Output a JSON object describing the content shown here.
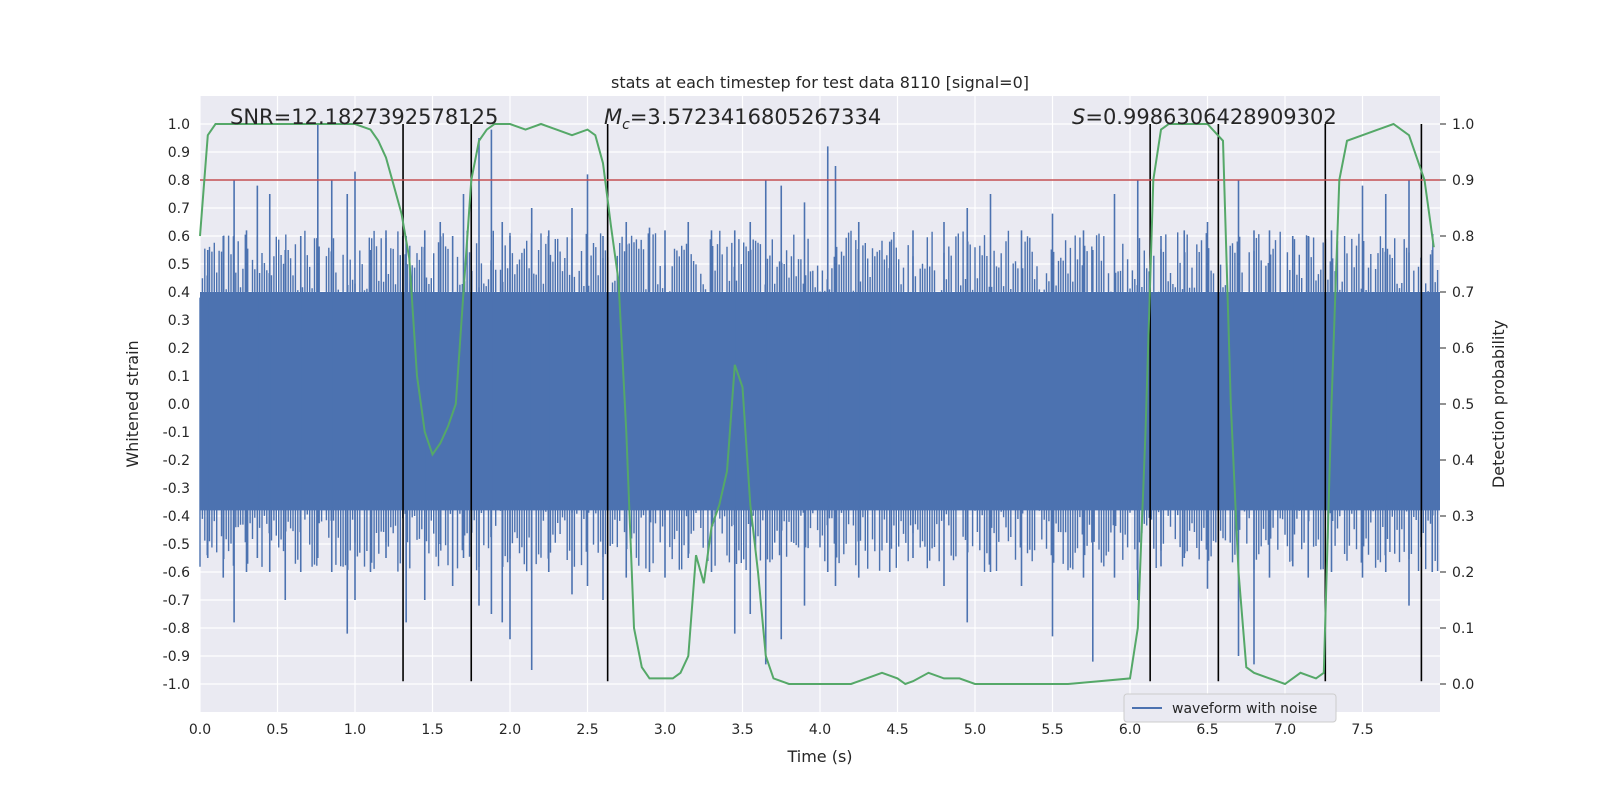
{
  "chart_data": {
    "type": "line",
    "title": "stats at each timestep for test data 8110 [signal=0]",
    "xlabel": "Time (s)",
    "ylabel": "Whitened strain",
    "ylabel_right": "Detection probability",
    "xlim": [
      0,
      8.0
    ],
    "ylim": [
      -1.1,
      1.1
    ],
    "ylim_right": [
      -0.05,
      1.05
    ],
    "x_ticks": [
      "0.0",
      "0.5",
      "1.0",
      "1.5",
      "2.0",
      "2.5",
      "3.0",
      "3.5",
      "4.0",
      "4.5",
      "5.0",
      "5.5",
      "6.0",
      "6.5",
      "7.0",
      "7.5"
    ],
    "y_ticks": [
      "-1.0",
      "-0.9",
      "-0.8",
      "-0.7",
      "-0.6",
      "-0.5",
      "-0.4",
      "-0.3",
      "-0.2",
      "-0.1",
      "0.0",
      "0.1",
      "0.2",
      "0.3",
      "0.4",
      "0.5",
      "0.6",
      "0.7",
      "0.8",
      "0.9",
      "1.0"
    ],
    "y_right_ticks": [
      "0.0",
      "0.1",
      "0.2",
      "0.3",
      "0.4",
      "0.5",
      "0.6",
      "0.7",
      "0.8",
      "0.9",
      "1.0"
    ],
    "grid": true,
    "legend": {
      "placement": "lower-right",
      "entries": [
        "waveform with noise"
      ]
    },
    "annotations": {
      "snr": "SNR=12.1827392578125",
      "mc_symbol": "M",
      "mc_sub": "c",
      "mc_value": "=3.5723416805267334",
      "s_symbol": "S",
      "s_value": "=0.9986306428909302"
    },
    "threshold": {
      "axis": "right",
      "value": 0.9,
      "color": "#c44e52"
    },
    "event_lines": [
      1.31,
      1.75,
      2.63,
      6.13,
      6.57,
      7.26,
      7.88
    ],
    "series": [
      {
        "name": "waveform with noise",
        "axis": "left",
        "color": "#4c72b0",
        "spikes": [
          [
            0.05,
            0.55,
            -0.55
          ],
          [
            0.15,
            0.6,
            -0.62
          ],
          [
            0.22,
            0.8,
            -0.78
          ],
          [
            0.3,
            0.62,
            -0.6
          ],
          [
            0.37,
            0.78,
            -0.55
          ],
          [
            0.45,
            0.75,
            -0.6
          ],
          [
            0.55,
            0.55,
            -0.7
          ],
          [
            0.65,
            0.6,
            -0.6
          ],
          [
            0.76,
            1.0,
            -0.55
          ],
          [
            0.85,
            0.8,
            -0.6
          ],
          [
            0.95,
            0.75,
            -0.82
          ],
          [
            1.0,
            0.83,
            -0.7
          ],
          [
            1.1,
            0.55,
            -0.6
          ],
          [
            1.2,
            0.62,
            -0.55
          ],
          [
            1.33,
            0.6,
            -0.78
          ],
          [
            1.45,
            0.62,
            -0.7
          ],
          [
            1.55,
            0.65,
            -0.5
          ],
          [
            1.63,
            0.6,
            -0.65
          ],
          [
            1.7,
            0.75,
            -0.55
          ],
          [
            1.8,
            0.95,
            -0.72
          ],
          [
            1.88,
            0.98,
            -0.75
          ],
          [
            1.95,
            0.65,
            -0.78
          ],
          [
            2.0,
            0.6,
            -0.84
          ],
          [
            2.14,
            0.7,
            -0.95
          ],
          [
            2.25,
            0.62,
            -0.6
          ],
          [
            2.4,
            0.7,
            -0.68
          ],
          [
            2.5,
            0.82,
            -0.65
          ],
          [
            2.6,
            0.6,
            -0.7
          ],
          [
            2.75,
            0.65,
            -0.62
          ],
          [
            2.9,
            0.63,
            -0.6
          ],
          [
            3.0,
            0.62,
            -0.62
          ],
          [
            3.15,
            0.65,
            -0.55
          ],
          [
            3.3,
            0.62,
            -0.6
          ],
          [
            3.45,
            0.62,
            -0.82
          ],
          [
            3.55,
            0.65,
            -0.75
          ],
          [
            3.65,
            0.8,
            -0.93
          ],
          [
            3.75,
            0.78,
            -0.84
          ],
          [
            3.9,
            0.72,
            -0.72
          ],
          [
            4.05,
            0.92,
            -0.6
          ],
          [
            4.1,
            0.85,
            -0.65
          ],
          [
            4.25,
            0.65,
            -0.62
          ],
          [
            4.45,
            0.58,
            -0.6
          ],
          [
            4.6,
            0.62,
            -0.55
          ],
          [
            4.8,
            0.65,
            -0.65
          ],
          [
            4.95,
            0.7,
            -0.78
          ],
          [
            5.1,
            0.75,
            -0.6
          ],
          [
            5.3,
            0.62,
            -0.65
          ],
          [
            5.5,
            0.68,
            -0.83
          ],
          [
            5.7,
            0.62,
            -0.62
          ],
          [
            5.76,
            0.55,
            -0.92
          ],
          [
            5.9,
            0.75,
            -0.62
          ],
          [
            6.05,
            0.8,
            -0.7
          ],
          [
            6.2,
            0.6,
            -0.58
          ],
          [
            6.35,
            0.62,
            -0.55
          ],
          [
            6.5,
            0.65,
            -0.66
          ],
          [
            6.7,
            0.8,
            -0.9
          ],
          [
            6.8,
            0.62,
            -0.93
          ],
          [
            6.9,
            0.62,
            -0.62
          ],
          [
            7.05,
            0.6,
            -0.58
          ],
          [
            7.15,
            0.6,
            -0.62
          ],
          [
            7.3,
            0.62,
            -0.6
          ],
          [
            7.5,
            0.78,
            -0.62
          ],
          [
            7.65,
            0.75,
            -0.6
          ],
          [
            7.8,
            0.8,
            -0.72
          ],
          [
            7.95,
            0.55,
            -0.6
          ]
        ]
      },
      {
        "name": "",
        "axis": "right",
        "color": "#55a868",
        "x": [
          0.0,
          0.05,
          0.1,
          0.2,
          0.5,
          1.0,
          1.1,
          1.15,
          1.2,
          1.25,
          1.3,
          1.35,
          1.4,
          1.45,
          1.5,
          1.55,
          1.6,
          1.65,
          1.7,
          1.75,
          1.8,
          1.85,
          1.9,
          1.95,
          2.0,
          2.1,
          2.2,
          2.3,
          2.4,
          2.5,
          2.55,
          2.6,
          2.65,
          2.7,
          2.75,
          2.8,
          2.85,
          2.9,
          2.95,
          3.0,
          3.05,
          3.1,
          3.15,
          3.2,
          3.25,
          3.3,
          3.35,
          3.4,
          3.45,
          3.5,
          3.55,
          3.6,
          3.65,
          3.7,
          3.75,
          3.8,
          3.9,
          4.0,
          4.2,
          4.3,
          4.4,
          4.5,
          4.55,
          4.6,
          4.7,
          4.8,
          4.9,
          5.0,
          5.2,
          5.4,
          5.6,
          5.8,
          6.0,
          6.05,
          6.1,
          6.15,
          6.2,
          6.25,
          6.5,
          6.6,
          6.65,
          6.7,
          6.75,
          6.8,
          6.9,
          7.0,
          7.1,
          7.2,
          7.25,
          7.3,
          7.35,
          7.4,
          7.5,
          7.6,
          7.7,
          7.8,
          7.9,
          7.96
        ],
        "y": [
          0.8,
          0.98,
          1.0,
          1.0,
          1.0,
          1.0,
          0.99,
          0.97,
          0.94,
          0.89,
          0.84,
          0.76,
          0.55,
          0.45,
          0.41,
          0.43,
          0.46,
          0.5,
          0.7,
          0.9,
          0.97,
          0.99,
          1.0,
          1.0,
          1.0,
          0.99,
          1.0,
          0.99,
          0.98,
          0.99,
          0.98,
          0.93,
          0.82,
          0.72,
          0.45,
          0.1,
          0.03,
          0.01,
          0.01,
          0.01,
          0.01,
          0.02,
          0.05,
          0.23,
          0.18,
          0.28,
          0.32,
          0.38,
          0.57,
          0.53,
          0.32,
          0.2,
          0.05,
          0.01,
          0.005,
          0.0,
          0.0,
          0.0,
          0.0,
          0.01,
          0.02,
          0.01,
          0.0,
          0.005,
          0.02,
          0.01,
          0.01,
          0.0,
          0.0,
          0.0,
          0.0,
          0.005,
          0.01,
          0.1,
          0.45,
          0.9,
          0.99,
          1.0,
          1.0,
          0.97,
          0.5,
          0.2,
          0.03,
          0.02,
          0.01,
          0.0,
          0.02,
          0.01,
          0.02,
          0.5,
          0.9,
          0.97,
          0.98,
          0.99,
          1.0,
          0.98,
          0.9,
          0.78
        ]
      }
    ]
  }
}
